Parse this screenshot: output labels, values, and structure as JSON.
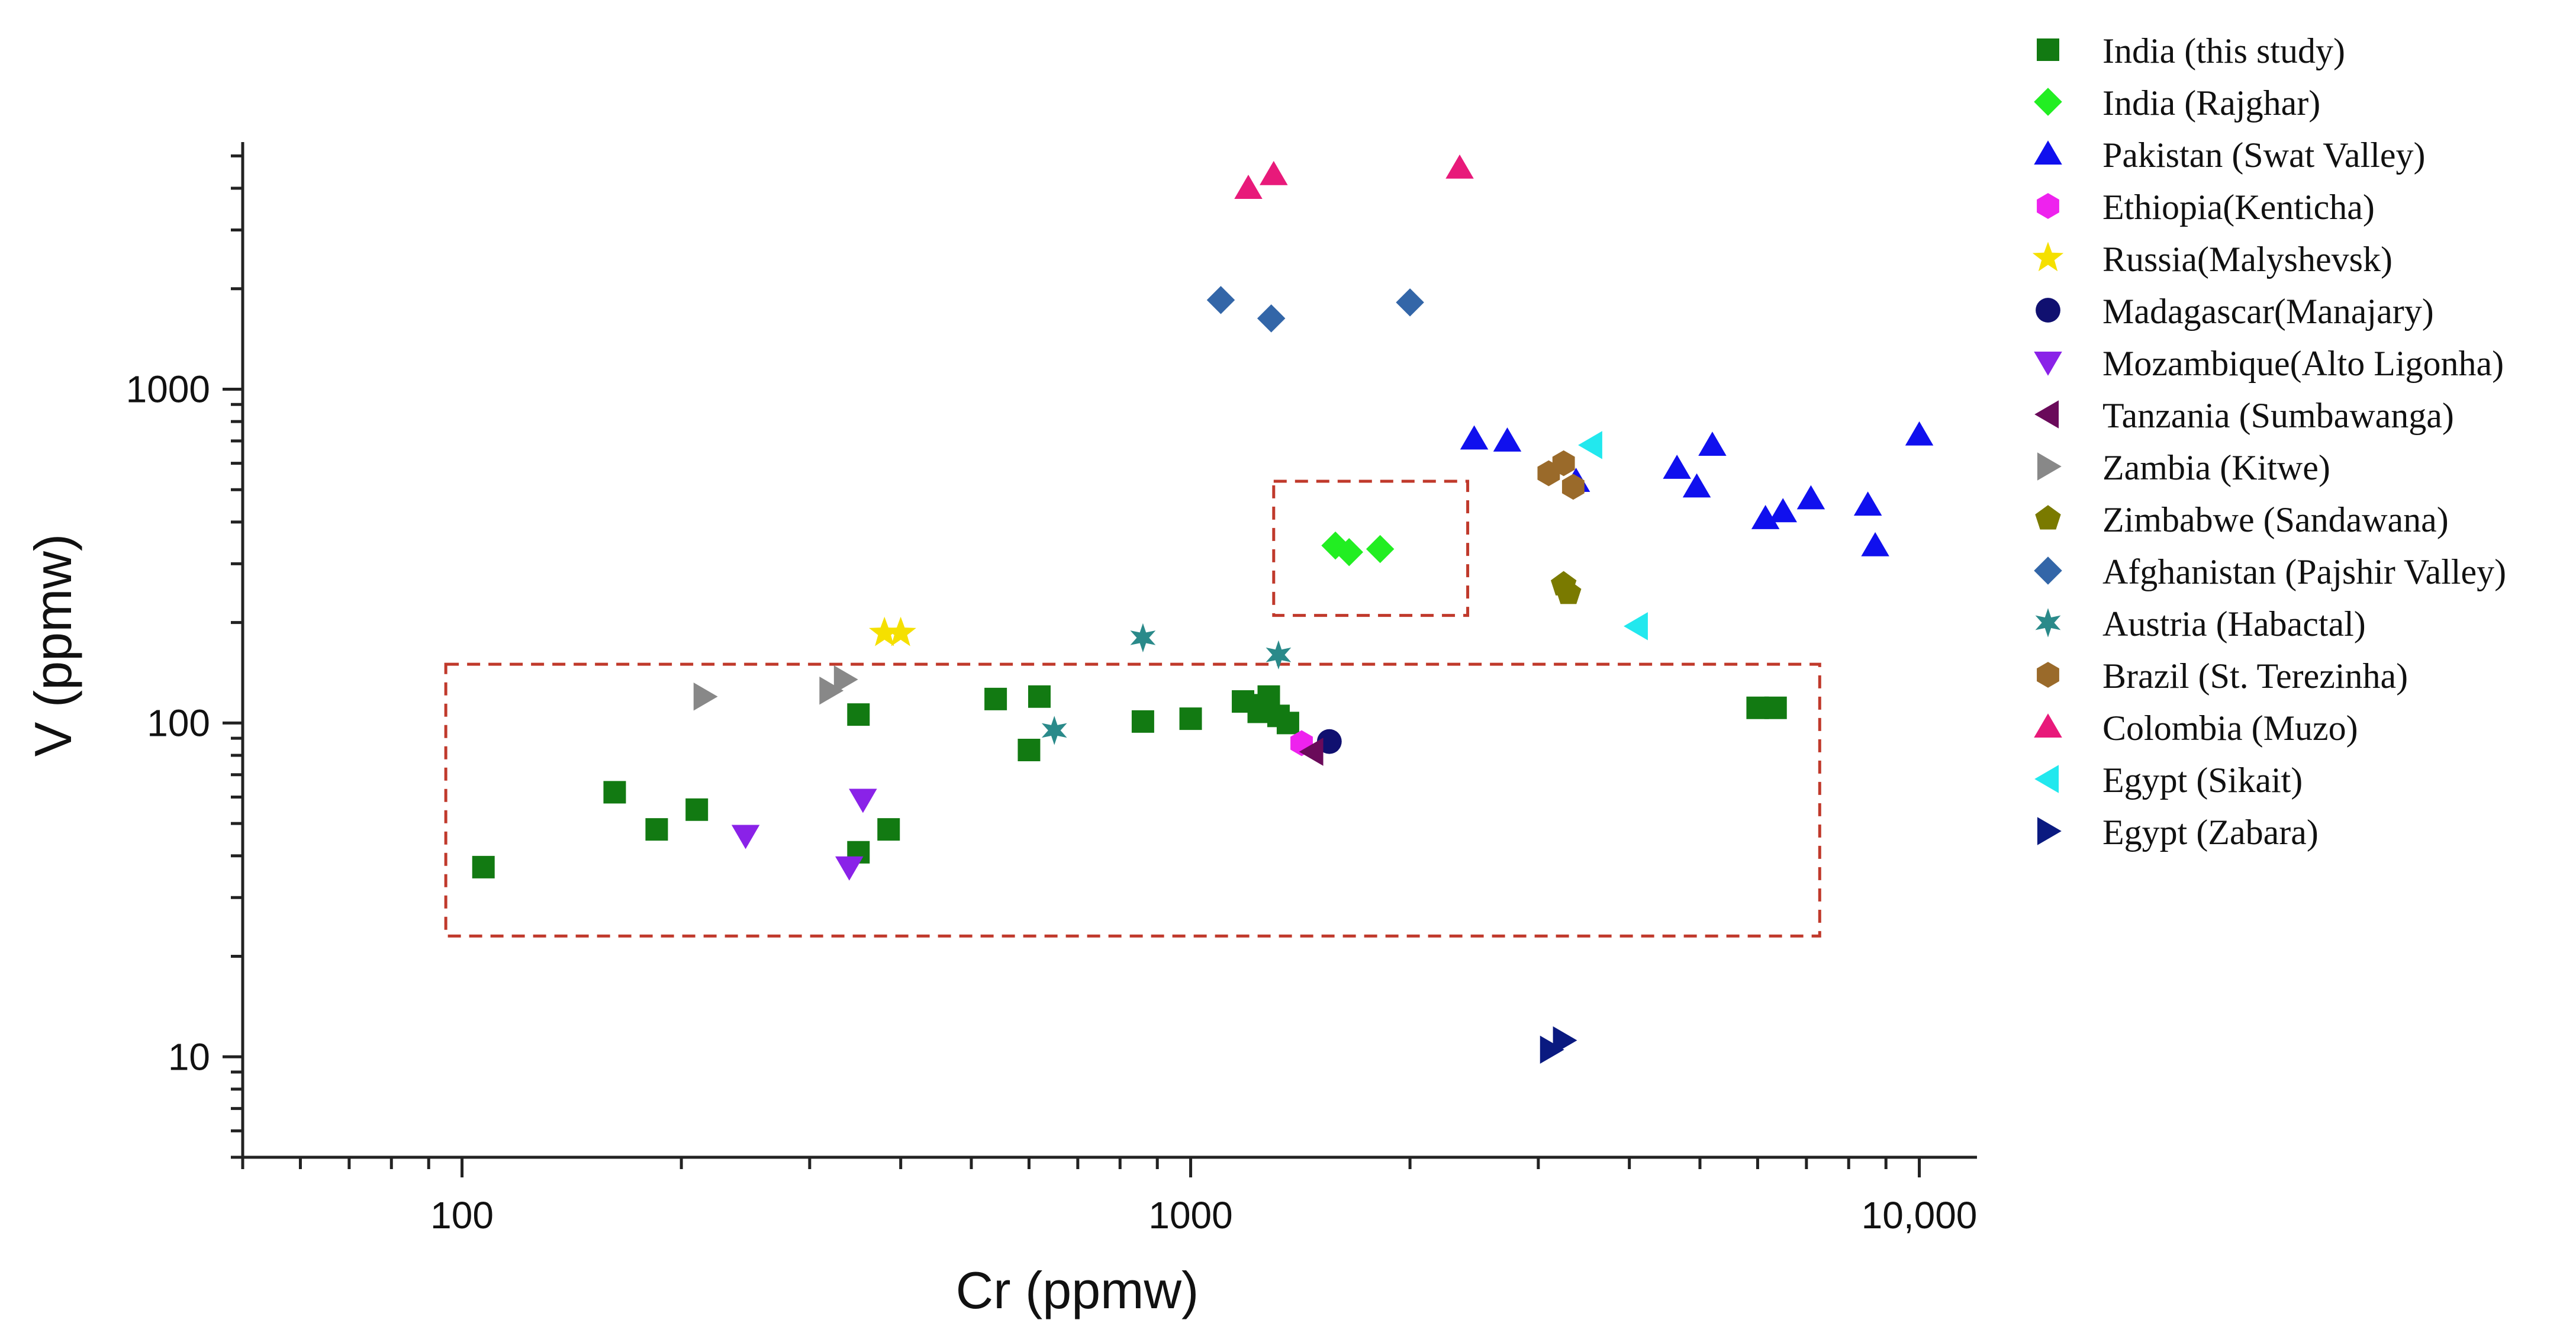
{
  "chart_data": {
    "type": "scatter",
    "xscale": "log",
    "yscale": "log",
    "xlabel": "Cr (ppmw)",
    "ylabel": "V (ppmw)",
    "xlim": [
      50,
      12000
    ],
    "ylim": [
      5,
      5500
    ],
    "xticks": [
      {
        "value": 100,
        "label": "100"
      },
      {
        "value": 1000,
        "label": "1000"
      },
      {
        "value": 10000,
        "label": "10,000"
      }
    ],
    "yticks": [
      {
        "value": 10,
        "label": "10"
      },
      {
        "value": 100,
        "label": "100"
      },
      {
        "value": 1000,
        "label": "1000"
      }
    ],
    "regions": [
      {
        "name": "region-large",
        "x": [
          95,
          7300
        ],
        "y": [
          23,
          150
        ],
        "color": "#c0392b"
      },
      {
        "name": "region-rajghar",
        "x": [
          1300,
          2400
        ],
        "y": [
          210,
          530
        ],
        "color": "#c0392b"
      }
    ],
    "series": [
      {
        "name": "India (this study)",
        "marker": "square",
        "color": "#127a12",
        "points": [
          [
            107,
            37
          ],
          [
            162,
            62
          ],
          [
            185,
            48
          ],
          [
            210,
            55
          ],
          [
            350,
            41
          ],
          [
            385,
            48
          ],
          [
            350,
            106
          ],
          [
            540,
            118
          ],
          [
            600,
            83
          ],
          [
            620,
            120
          ],
          [
            860,
            101
          ],
          [
            1000,
            103
          ],
          [
            1180,
            116
          ],
          [
            1240,
            108
          ],
          [
            1260,
            113
          ],
          [
            1280,
            120
          ],
          [
            1320,
            105
          ],
          [
            1360,
            100
          ],
          [
            6000,
            111
          ],
          [
            6350,
            111
          ]
        ]
      },
      {
        "name": "India (Rajghar)",
        "marker": "diamond",
        "color": "#22ee22",
        "points": [
          [
            1580,
            340
          ],
          [
            1650,
            325
          ],
          [
            1820,
            332
          ]
        ]
      },
      {
        "name": "Pakistan (Swat Valley)",
        "marker": "triangle-up",
        "color": "#1010ee",
        "points": [
          [
            2450,
            710
          ],
          [
            2720,
            700
          ],
          [
            3380,
            530
          ],
          [
            4650,
            580
          ],
          [
            4950,
            510
          ],
          [
            5200,
            680
          ],
          [
            6150,
            410
          ],
          [
            6500,
            430
          ],
          [
            7100,
            470
          ],
          [
            8500,
            450
          ],
          [
            8700,
            340
          ],
          [
            10000,
            730
          ]
        ]
      },
      {
        "name": "Ethiopia(Kenticha)",
        "marker": "hexagon",
        "color": "#ee22ee",
        "points": [
          [
            1420,
            87
          ]
        ]
      },
      {
        "name": "Russia(Malyshevsk)",
        "marker": "star5",
        "color": "#f5e000",
        "points": [
          [
            380,
            186
          ],
          [
            400,
            186
          ]
        ]
      },
      {
        "name": "Madagascar(Manajary)",
        "marker": "circle",
        "color": "#101070",
        "points": [
          [
            1550,
            88
          ]
        ]
      },
      {
        "name": "Mozambique(Alto Ligonha)",
        "marker": "triangle-down",
        "color": "#8a22e8",
        "points": [
          [
            245,
            46
          ],
          [
            355,
            59
          ],
          [
            340,
            37
          ]
        ]
      },
      {
        "name": "Tanzania (Sumbawanga)",
        "marker": "triangle-left",
        "color": "#6a0a5a",
        "points": [
          [
            1470,
            82
          ]
        ]
      },
      {
        "name": "Zambia (Kitwe)",
        "marker": "triangle-right",
        "color": "#888888",
        "points": [
          [
            215,
            120
          ],
          [
            320,
            125
          ],
          [
            335,
            135
          ]
        ]
      },
      {
        "name": "Zimbabwe (Sandawana)",
        "marker": "pentagon",
        "color": "#7a7a00",
        "points": [
          [
            3250,
            260
          ],
          [
            3300,
            245
          ]
        ]
      },
      {
        "name": "Afghanistan (Pajshir Valley)",
        "marker": "diamond",
        "color": "#3366a8",
        "points": [
          [
            1100,
            1850
          ],
          [
            1290,
            1630
          ],
          [
            2000,
            1820
          ]
        ]
      },
      {
        "name": "Austria (Habactal)",
        "marker": "star6",
        "color": "#2a8a8a",
        "points": [
          [
            650,
            95
          ],
          [
            860,
            180
          ],
          [
            1320,
            160
          ]
        ]
      },
      {
        "name": "Brazil (St. Terezinha)",
        "marker": "hexagon",
        "color": "#9a6a2a",
        "points": [
          [
            3100,
            560
          ],
          [
            3250,
            600
          ],
          [
            3350,
            510
          ]
        ]
      },
      {
        "name": "Colombia (Muzo)",
        "marker": "triangle-up",
        "color": "#e81a7a",
        "points": [
          [
            1200,
            4000
          ],
          [
            1300,
            4400
          ],
          [
            2340,
            4600
          ]
        ]
      },
      {
        "name": "Egypt (Sikait)",
        "marker": "triangle-left",
        "color": "#22e8ee",
        "points": [
          [
            3550,
            680
          ],
          [
            4100,
            195
          ]
        ]
      },
      {
        "name": "Egypt (Zabara)",
        "marker": "triangle-right",
        "color": "#0a1a80",
        "points": [
          [
            3120,
            10.5
          ],
          [
            3250,
            11.2
          ]
        ]
      }
    ]
  }
}
